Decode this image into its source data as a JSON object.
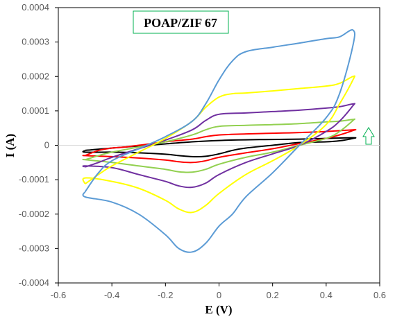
{
  "chart_data": {
    "type": "line",
    "title": "POAP/ZIF 67",
    "xlabel": "E (V)",
    "ylabel": "I (A)",
    "xlim": [
      -0.6,
      0.6
    ],
    "ylim": [
      -0.0004,
      0.0004
    ],
    "x_ticks": [
      -0.6,
      -0.4,
      -0.2,
      0,
      0.2,
      0.4,
      0.6
    ],
    "x_tick_labels": [
      "-0.6",
      "-0.4",
      "-0.2",
      "0",
      "0.2",
      "0.4",
      "0.6"
    ],
    "y_ticks": [
      0.0004,
      0.0003,
      0.0002,
      0.0001,
      0,
      -0.0001,
      -0.0002,
      -0.0003,
      -0.0004
    ],
    "y_tick_labels": [
      "0.0004",
      "0.0003",
      "0.0002",
      "0.0001",
      "0",
      "-0.0001",
      "-0.0002",
      "-0.0003",
      "-0.0004"
    ],
    "grid": false,
    "annotation": "up-arrow",
    "series": [
      {
        "color": "#000000",
        "points": [
          [
            -0.5,
            -1.5e-05
          ],
          [
            -0.4,
            -8e-06
          ],
          [
            -0.3,
            -2e-06
          ],
          [
            -0.2,
            4e-06
          ],
          [
            -0.1,
            1e-05
          ],
          [
            0.0,
            1.4e-05
          ],
          [
            0.1,
            1.6e-05
          ],
          [
            0.2,
            1.7e-05
          ],
          [
            0.3,
            1.8e-05
          ],
          [
            0.4,
            2e-05
          ],
          [
            0.5,
            2.2e-05
          ],
          [
            0.5,
            2e-05
          ],
          [
            0.45,
            1.3e-05
          ],
          [
            0.4,
            1e-05
          ],
          [
            0.3,
            8e-06
          ],
          [
            0.2,
            0.0
          ],
          [
            0.1,
            -8e-06
          ],
          [
            0.05,
            -1.5e-05
          ],
          [
            0.0,
            -2.5e-05
          ],
          [
            -0.05,
            -3.2e-05
          ],
          [
            -0.1,
            -3.3e-05
          ],
          [
            -0.15,
            -3e-05
          ],
          [
            -0.2,
            -2.6e-05
          ],
          [
            -0.3,
            -2.2e-05
          ],
          [
            -0.4,
            -2e-05
          ],
          [
            -0.5,
            -2e-05
          ]
        ]
      },
      {
        "color": "#ff0000",
        "points": [
          [
            -0.5,
            -3e-05
          ],
          [
            -0.45,
            -1.5e-05
          ],
          [
            -0.4,
            -8e-06
          ],
          [
            -0.35,
            -5e-06
          ],
          [
            -0.3,
            0.0
          ],
          [
            -0.2,
            1e-05
          ],
          [
            -0.1,
            1.8e-05
          ],
          [
            -0.05,
            2.5e-05
          ],
          [
            0.0,
            3e-05
          ],
          [
            0.1,
            3.3e-05
          ],
          [
            0.2,
            3.5e-05
          ],
          [
            0.3,
            3.7e-05
          ],
          [
            0.4,
            4e-05
          ],
          [
            0.5,
            4.5e-05
          ],
          [
            0.5,
            4.3e-05
          ],
          [
            0.45,
            3e-05
          ],
          [
            0.4,
            2e-05
          ],
          [
            0.3,
            5e-06
          ],
          [
            0.2,
            -1e-05
          ],
          [
            0.1,
            -2.2e-05
          ],
          [
            0.0,
            -3.5e-05
          ],
          [
            -0.05,
            -4.5e-05
          ],
          [
            -0.1,
            -5e-05
          ],
          [
            -0.15,
            -4.8e-05
          ],
          [
            -0.2,
            -4.3e-05
          ],
          [
            -0.3,
            -3.7e-05
          ],
          [
            -0.4,
            -3.3e-05
          ],
          [
            -0.5,
            -3e-05
          ]
        ]
      },
      {
        "color": "#92d050",
        "points": [
          [
            -0.5,
            -4.2e-05
          ],
          [
            -0.45,
            -3e-05
          ],
          [
            -0.4,
            -2e-05
          ],
          [
            -0.3,
            -5e-06
          ],
          [
            -0.2,
            1e-05
          ],
          [
            -0.1,
            3e-05
          ],
          [
            -0.05,
            4.5e-05
          ],
          [
            0.0,
            5.5e-05
          ],
          [
            0.1,
            5.8e-05
          ],
          [
            0.2,
            6e-05
          ],
          [
            0.3,
            6.3e-05
          ],
          [
            0.4,
            6.8e-05
          ],
          [
            0.45,
            7e-05
          ],
          [
            0.5,
            7.5e-05
          ],
          [
            0.5,
            7.2e-05
          ],
          [
            0.45,
            4e-05
          ],
          [
            0.4,
            2e-05
          ],
          [
            0.3,
            0.0
          ],
          [
            0.2,
            -2e-05
          ],
          [
            0.1,
            -3.5e-05
          ],
          [
            0.0,
            -5.5e-05
          ],
          [
            -0.05,
            -7e-05
          ],
          [
            -0.1,
            -7.8e-05
          ],
          [
            -0.15,
            -7.7e-05
          ],
          [
            -0.2,
            -7e-05
          ],
          [
            -0.3,
            -6e-05
          ],
          [
            -0.4,
            -5e-05
          ],
          [
            -0.5,
            -4.2e-05
          ]
        ]
      },
      {
        "color": "#7030a0",
        "points": [
          [
            -0.5,
            -6.3e-05
          ],
          [
            -0.45,
            -5e-05
          ],
          [
            -0.4,
            -3.5e-05
          ],
          [
            -0.3,
            -1e-05
          ],
          [
            -0.2,
            1.5e-05
          ],
          [
            -0.1,
            4.5e-05
          ],
          [
            -0.05,
            7.2e-05
          ],
          [
            0.0,
            9e-05
          ],
          [
            0.1,
            9.4e-05
          ],
          [
            0.2,
            9.8e-05
          ],
          [
            0.3,
            0.000102
          ],
          [
            0.4,
            0.000108
          ],
          [
            0.45,
            0.000112
          ],
          [
            0.5,
            0.00012
          ],
          [
            0.5,
            0.000115
          ],
          [
            0.45,
            7e-05
          ],
          [
            0.4,
            4e-05
          ],
          [
            0.3,
            0.0
          ],
          [
            0.2,
            -2.5e-05
          ],
          [
            0.1,
            -5e-05
          ],
          [
            0.0,
            -8.5e-05
          ],
          [
            -0.05,
            -0.00011
          ],
          [
            -0.1,
            -0.000122
          ],
          [
            -0.15,
            -0.000118
          ],
          [
            -0.2,
            -0.000105
          ],
          [
            -0.3,
            -8.5e-05
          ],
          [
            -0.4,
            -6.5e-05
          ],
          [
            -0.5,
            -6e-05
          ]
        ]
      },
      {
        "color": "#ffff00",
        "points": [
          [
            -0.5,
            -0.000112
          ],
          [
            -0.45,
            -8.5e-05
          ],
          [
            -0.4,
            -6e-05
          ],
          [
            -0.3,
            -2e-05
          ],
          [
            -0.2,
            2e-05
          ],
          [
            -0.1,
            7e-05
          ],
          [
            -0.05,
            0.00011
          ],
          [
            0.0,
            0.00014
          ],
          [
            0.05,
            0.00015
          ],
          [
            0.1,
            0.000152
          ],
          [
            0.2,
            0.000158
          ],
          [
            0.3,
            0.000165
          ],
          [
            0.4,
            0.000172
          ],
          [
            0.45,
            0.00018
          ],
          [
            0.5,
            0.0002
          ],
          [
            0.5,
            0.00019
          ],
          [
            0.45,
            0.00012
          ],
          [
            0.4,
            6e-05
          ],
          [
            0.3,
            0.0
          ],
          [
            0.2,
            -4.5e-05
          ],
          [
            0.1,
            -8.5e-05
          ],
          [
            0.0,
            -0.00014
          ],
          [
            -0.05,
            -0.000175
          ],
          [
            -0.1,
            -0.000195
          ],
          [
            -0.15,
            -0.000185
          ],
          [
            -0.2,
            -0.00016
          ],
          [
            -0.3,
            -0.000125
          ],
          [
            -0.4,
            -0.000105
          ],
          [
            -0.5,
            -9.5e-05
          ]
        ]
      },
      {
        "color": "#5b9bd5",
        "points": [
          [
            -0.5,
            -0.000135
          ],
          [
            -0.45,
            -8e-05
          ],
          [
            -0.4,
            -4.5e-05
          ],
          [
            -0.3,
            -1e-05
          ],
          [
            -0.2,
            2.5e-05
          ],
          [
            -0.1,
            7e-05
          ],
          [
            -0.05,
            0.00012
          ],
          [
            0.0,
            0.00019
          ],
          [
            0.05,
            0.000245
          ],
          [
            0.1,
            0.000272
          ],
          [
            0.2,
            0.000285
          ],
          [
            0.3,
            0.000297
          ],
          [
            0.4,
            0.00031
          ],
          [
            0.45,
            0.000315
          ],
          [
            0.5,
            0.000335
          ],
          [
            0.5,
            0.00029
          ],
          [
            0.45,
            0.00015
          ],
          [
            0.4,
            8e-05
          ],
          [
            0.3,
            0.0
          ],
          [
            0.2,
            -8e-05
          ],
          [
            0.1,
            -0.00015
          ],
          [
            0.05,
            -0.0002
          ],
          [
            0.0,
            -0.000235
          ],
          [
            -0.05,
            -0.000285
          ],
          [
            -0.1,
            -0.00031
          ],
          [
            -0.15,
            -0.0003
          ],
          [
            -0.2,
            -0.00026
          ],
          [
            -0.3,
            -0.0002
          ],
          [
            -0.4,
            -0.000165
          ],
          [
            -0.5,
            -0.00015
          ]
        ]
      }
    ]
  }
}
